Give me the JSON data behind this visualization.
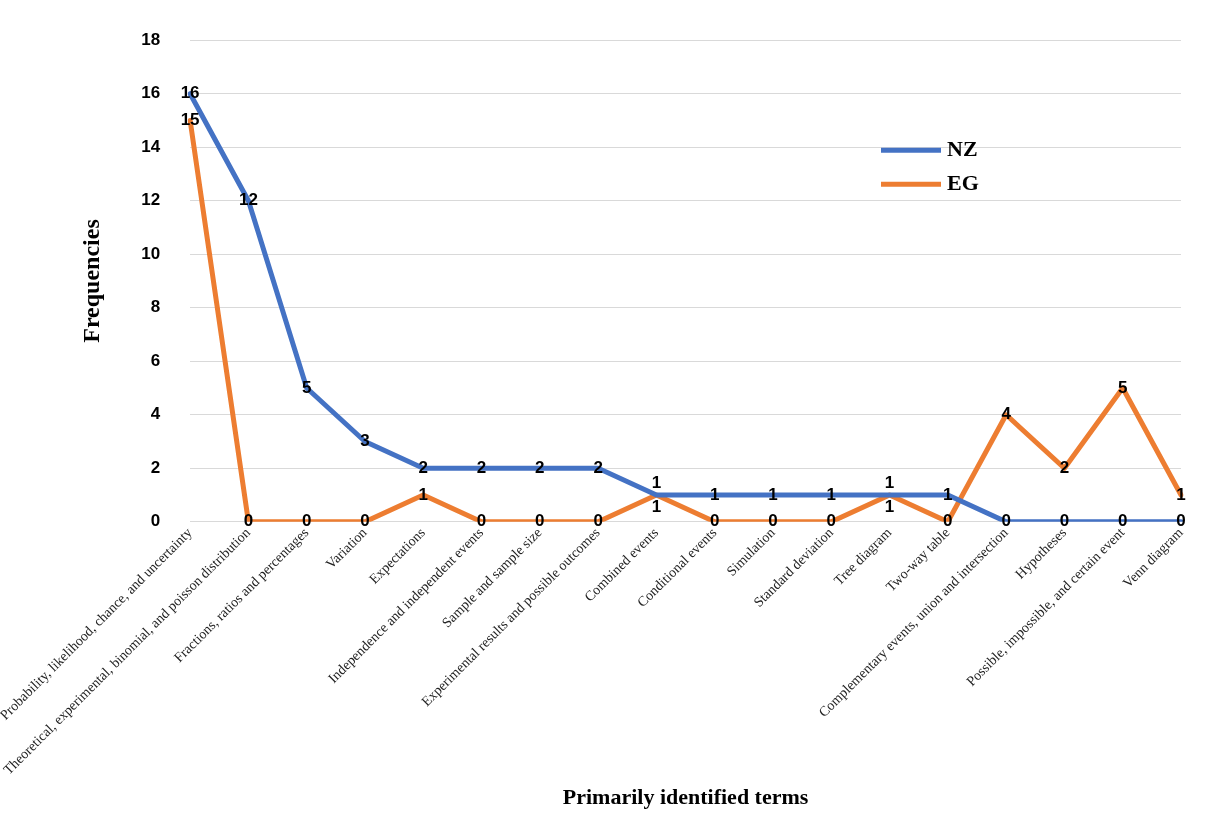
{
  "chart_data": {
    "type": "line",
    "xlabel": "Primarily identified terms",
    "ylabel": "Frequencies",
    "categories": [
      "Probability, likelihood, chance, and uncertainty",
      "Theoretical, experimental, binomial, and poisson distribution",
      "Fractions, ratios and percentages",
      "Variation",
      "Expectations",
      "Independence and independent events",
      "Sample and sample size",
      "Experimental results and possible outcomes",
      "Combined events",
      "Conditional events",
      "Simulation",
      "Standard deviation",
      "Tree diagram",
      "Two-way table",
      "Complementary events, union and intersection",
      "Hypotheses",
      "Possible, impossible, and certain event",
      "Venn diagram"
    ],
    "series": [
      {
        "name": "NZ",
        "color": "#4472c4",
        "values": [
          16,
          12,
          5,
          3,
          2,
          2,
          2,
          2,
          1,
          1,
          1,
          1,
          1,
          1,
          0,
          0,
          0,
          0
        ]
      },
      {
        "name": "EG",
        "color": "#ed7d31",
        "values": [
          15,
          0,
          0,
          0,
          1,
          0,
          0,
          0,
          1,
          0,
          0,
          0,
          1,
          0,
          4,
          2,
          5,
          1
        ]
      }
    ],
    "ylim": [
      0,
      18
    ],
    "yticks": [
      0,
      2,
      4,
      6,
      8,
      10,
      12,
      14,
      16,
      18
    ],
    "grid": "y",
    "legend": "top right",
    "marker": "none",
    "line_style": "solid",
    "data_labels": true
  }
}
